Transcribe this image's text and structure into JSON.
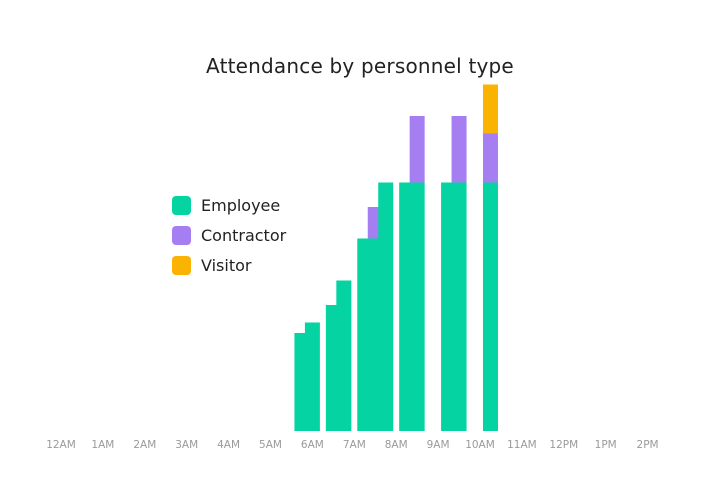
{
  "title": "Attendance by personnel type",
  "colors": {
    "employee": "#05d3a2",
    "contractor": "#a57ff2",
    "visitor": "#f9b300",
    "tick_text": "#9a9a9a"
  },
  "chart_data": {
    "type": "bar",
    "stacked": true,
    "title": "Attendance by personnel type",
    "xlabel": "",
    "ylabel": "",
    "tick_labels": [
      "12AM",
      "1AM",
      "2AM",
      "3AM",
      "4AM",
      "5AM",
      "6AM",
      "7AM",
      "8AM",
      "9AM",
      "10AM",
      "11AM",
      "12PM",
      "1PM",
      "2PM"
    ],
    "categories": [
      "5:45AM",
      "6:00AM",
      "6:30AM",
      "6:45AM",
      "7:15AM",
      "7:30AM",
      "7:45AM",
      "8:15AM",
      "8:30AM",
      "9:15AM",
      "9:30AM",
      "10:15AM"
    ],
    "x_hours": [
      5.75,
      6.0,
      6.5,
      6.75,
      7.25,
      7.5,
      7.75,
      8.25,
      8.5,
      9.25,
      9.5,
      10.25
    ],
    "series": [
      {
        "name": "Employee",
        "color": "#05d3a2",
        "values": [
          28,
          31,
          36,
          43,
          55,
          55,
          71,
          71,
          71,
          71,
          71,
          71
        ]
      },
      {
        "name": "Contractor",
        "color": "#a57ff2",
        "values": [
          0,
          0,
          0,
          0,
          0,
          9,
          0,
          0,
          19,
          0,
          19,
          14
        ]
      },
      {
        "name": "Visitor",
        "color": "#f9b300",
        "values": [
          0,
          0,
          0,
          0,
          0,
          0,
          0,
          0,
          0,
          0,
          0,
          14
        ]
      }
    ],
    "ylim": [
      0,
      100
    ],
    "grid": false,
    "legend": "left"
  }
}
